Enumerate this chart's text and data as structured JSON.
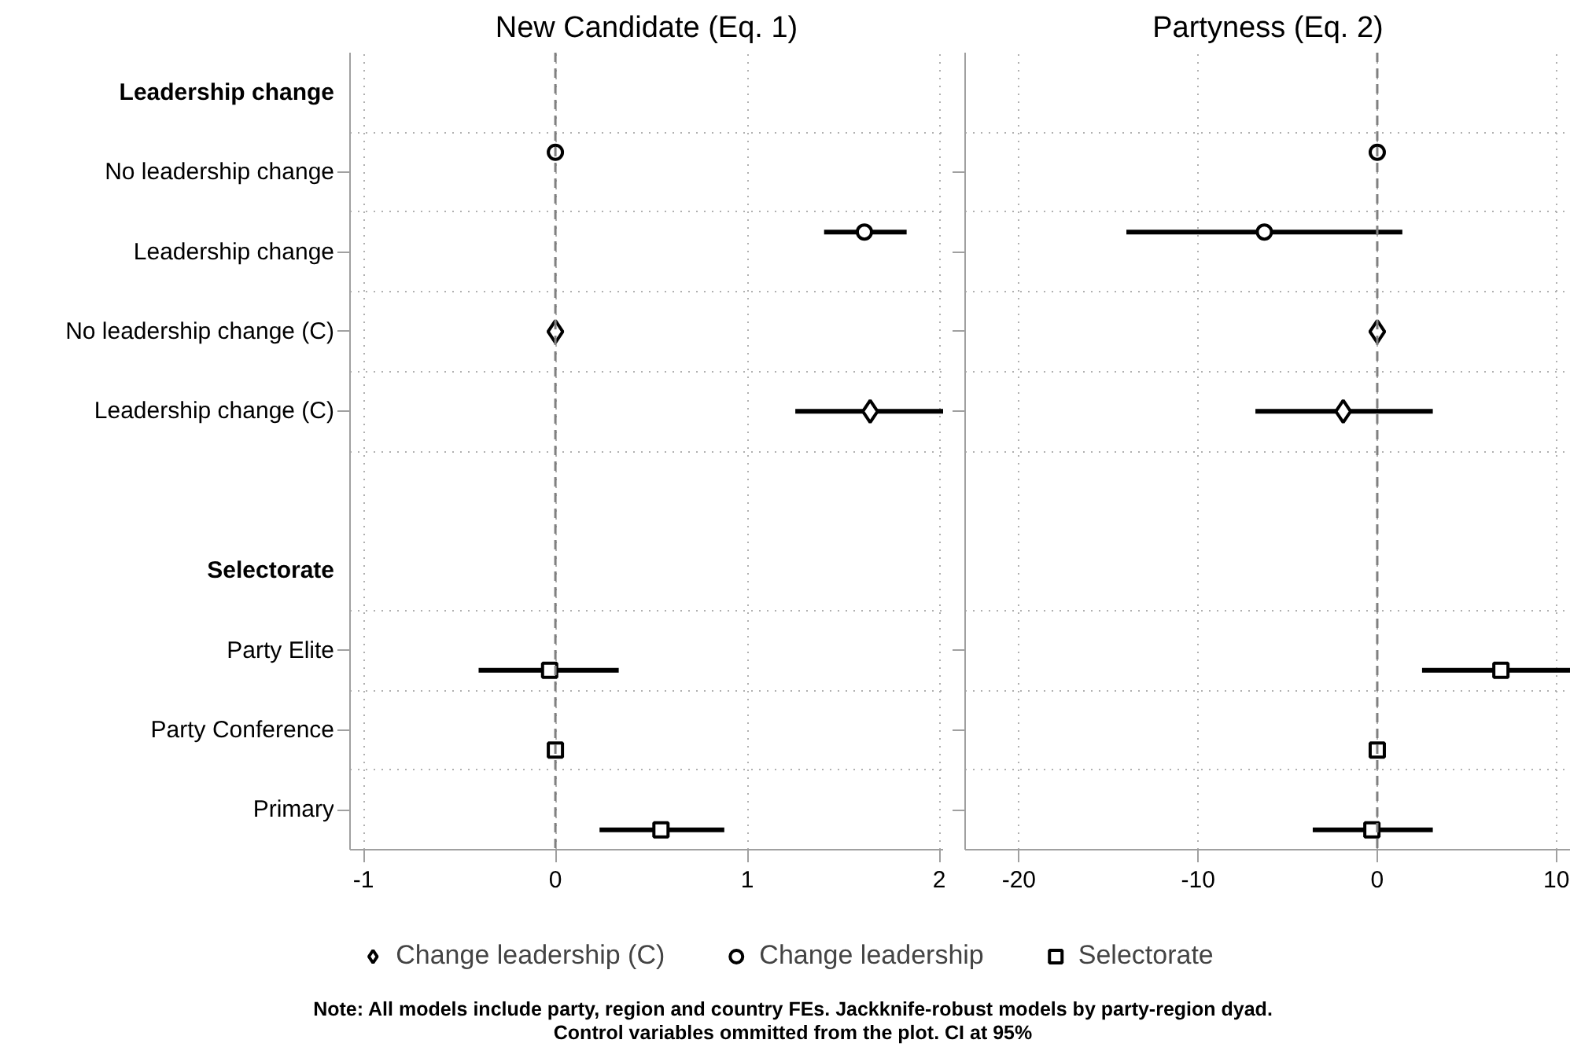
{
  "chart_data": [
    {
      "type": "scatter",
      "title": "New Candidate (Eq. 1)",
      "categories": [
        "Leadership change",
        "No leadership change",
        "Leadership change",
        "No leadership change (C)",
        "Leadership change (C)",
        null,
        "Selectorate",
        "Party Elite",
        "Party Conference",
        "Primary"
      ],
      "series": [
        {
          "name": "Change leadership (C)",
          "color": "#000000",
          "marker": "diamond",
          "values": [
            null,
            null,
            null,
            0,
            1.64,
            null,
            null,
            null,
            null,
            null
          ],
          "errors": [
            null,
            null,
            null,
            null,
            [
              1.25,
              2.02
            ],
            null,
            null,
            null,
            null,
            null
          ]
        },
        {
          "name": "Change leadership",
          "color": "#000000",
          "marker": "circle",
          "values": [
            null,
            0,
            1.61,
            null,
            null,
            null,
            null,
            null,
            null,
            null
          ],
          "errors": [
            null,
            null,
            [
              1.4,
              1.83
            ],
            null,
            null,
            null,
            null,
            null,
            null,
            null
          ]
        },
        {
          "name": "Selectorate",
          "color": "#000000",
          "marker": "square",
          "values": [
            null,
            null,
            null,
            null,
            null,
            null,
            null,
            -0.03,
            0,
            0.55
          ],
          "errors": [
            null,
            null,
            null,
            null,
            null,
            null,
            null,
            [
              -0.4,
              0.33
            ],
            null,
            [
              0.23,
              0.88
            ]
          ]
        }
      ],
      "orientation": "horizontal",
      "xlim": [
        -1.07,
        2.02
      ],
      "xticks": [
        -1,
        0,
        1,
        2
      ],
      "ref_lines": [
        {
          "axis": "x",
          "value": 0,
          "color": "#808080",
          "line_style": "dashed"
        }
      ],
      "grid": true,
      "legend": "bottom",
      "annotations": [
        "Note: All models include party, region and country FEs. Jackknife-robust models by party-region dyad.\nControl variables ommitted from the plot. CI at 95%"
      ]
    },
    {
      "type": "scatter",
      "title": "Partyness (Eq. 2)",
      "categories": [
        "Leadership change",
        "No leadership change",
        "Leadership change",
        "No leadership change (C)",
        "Leadership change (C)",
        null,
        "Selectorate",
        "Party Elite",
        "Party Conference",
        "Primary"
      ],
      "series": [
        {
          "name": "Change leadership (C)",
          "color": "#000000",
          "marker": "diamond",
          "values": [
            null,
            null,
            null,
            0,
            -1.9,
            null,
            null,
            null,
            null,
            null
          ],
          "errors": [
            null,
            null,
            null,
            null,
            [
              -6.8,
              3.1
            ],
            null,
            null,
            null,
            null,
            null
          ]
        },
        {
          "name": "Change leadership",
          "color": "#000000",
          "marker": "circle",
          "values": [
            null,
            0,
            -6.3,
            null,
            null,
            null,
            null,
            null,
            null,
            null
          ],
          "errors": [
            null,
            null,
            [
              -14.0,
              1.4
            ],
            null,
            null,
            null,
            null,
            null,
            null,
            null
          ]
        },
        {
          "name": "Selectorate",
          "color": "#000000",
          "marker": "square",
          "values": [
            null,
            null,
            null,
            null,
            null,
            null,
            null,
            6.9,
            0,
            -0.3
          ],
          "errors": [
            null,
            null,
            null,
            null,
            null,
            null,
            null,
            [
              2.5,
              10.8
            ],
            null,
            [
              -3.6,
              3.1
            ]
          ]
        }
      ],
      "orientation": "horizontal",
      "xlim": [
        -23,
        10.8
      ],
      "xticks": [
        -20,
        -10,
        0,
        10
      ],
      "ref_lines": [
        {
          "axis": "x",
          "value": 0,
          "color": "#808080",
          "line_style": "dashed"
        }
      ],
      "grid": true,
      "legend": "bottom",
      "tick_labels": "x"
    }
  ]
}
